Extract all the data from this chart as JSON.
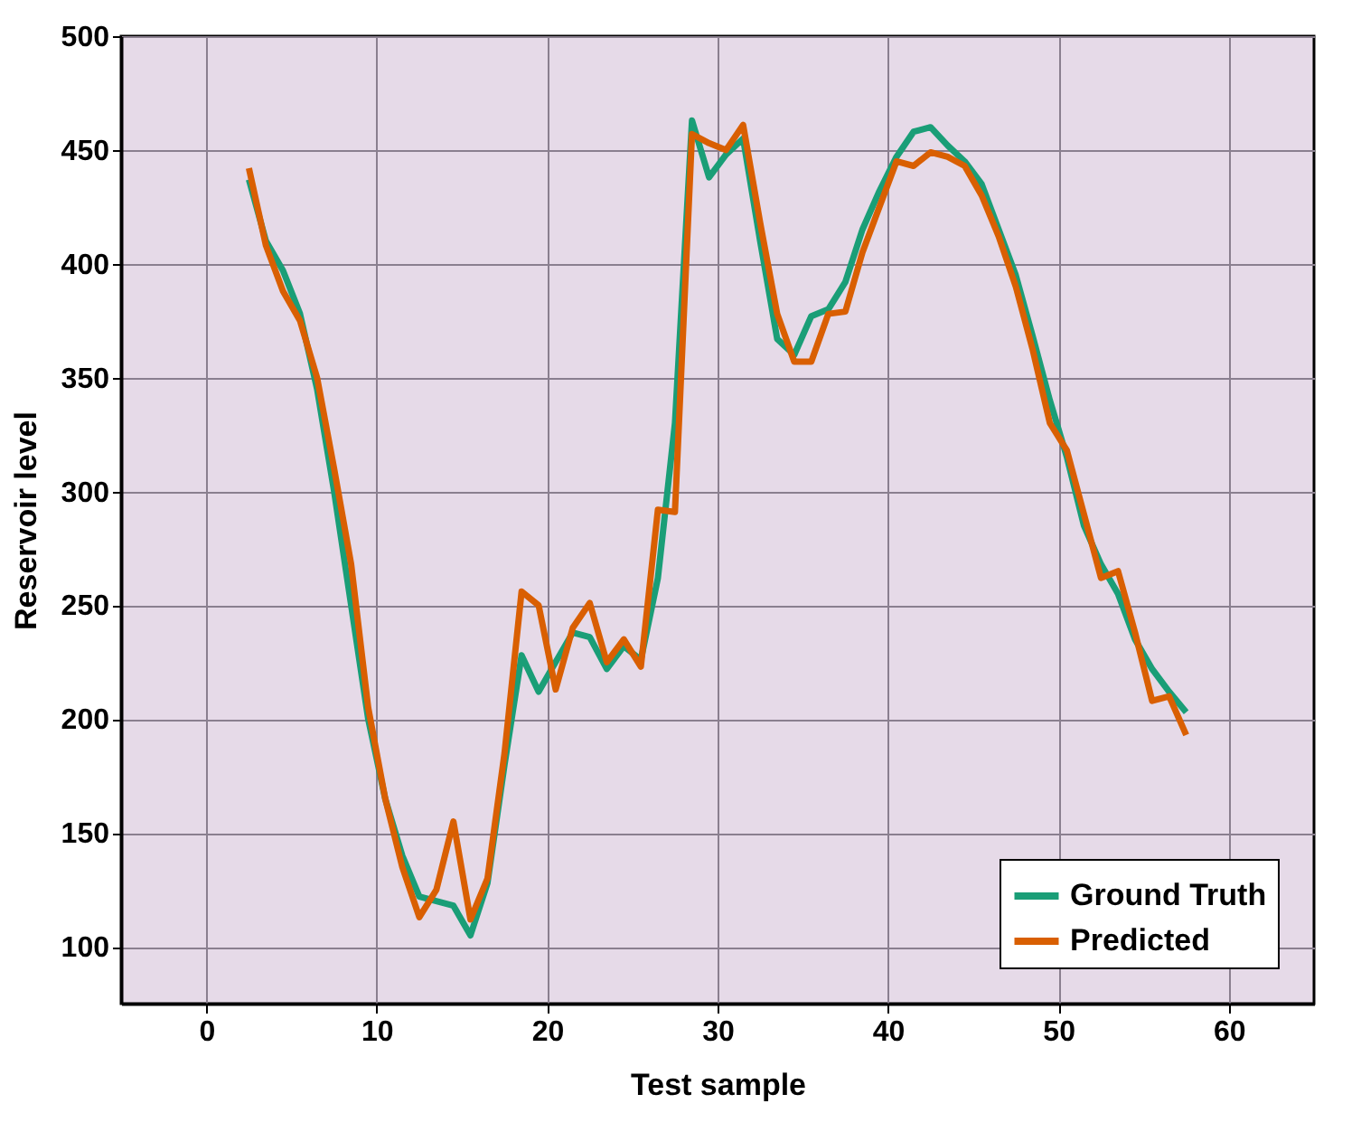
{
  "chart_data": {
    "type": "line",
    "xlabel": "Test sample",
    "ylabel": "Reservoir level",
    "x": [
      2.5,
      3.5,
      4.5,
      5.5,
      6.5,
      7.5,
      8.5,
      9.5,
      10.5,
      11.5,
      12.5,
      13.5,
      14.5,
      15.5,
      16.5,
      17.5,
      18.5,
      19.5,
      20.5,
      21.5,
      22.5,
      23.5,
      24.5,
      25.5,
      26.5,
      27.5,
      28.5,
      29.5,
      30.5,
      31.5,
      32.5,
      33.5,
      34.5,
      35.5,
      36.5,
      37.5,
      38.5,
      39.5,
      40.5,
      41.5,
      42.5,
      43.5,
      44.5,
      45.5,
      46.5,
      47.5,
      48.5,
      49.5,
      50.5,
      51.5,
      52.5,
      53.5,
      54.5,
      55.5,
      56.5,
      57.5
    ],
    "series": [
      {
        "name": "Ground Truth",
        "color": "#1a9e77",
        "values": [
          437,
          410,
          397,
          378,
          345,
          300,
          250,
          200,
          165,
          140,
          122,
          120,
          118,
          105,
          128,
          180,
          228,
          212,
          225,
          238,
          236,
          222,
          232,
          226,
          262,
          330,
          463,
          438,
          448,
          455,
          410,
          367,
          360,
          377,
          380,
          392,
          415,
          432,
          447,
          458,
          460,
          452,
          445,
          435,
          415,
          395,
          368,
          340,
          315,
          285,
          268,
          255,
          235,
          222,
          212,
          203
        ]
      },
      {
        "name": "Predicted",
        "color": "#d95f02",
        "values": [
          442,
          408,
          388,
          375,
          350,
          310,
          268,
          205,
          165,
          135,
          113,
          125,
          155,
          112,
          130,
          185,
          256,
          250,
          213,
          240,
          251,
          225,
          235,
          223,
          292,
          291,
          457,
          453,
          450,
          461,
          418,
          378,
          357,
          357,
          378,
          379,
          405,
          425,
          445,
          443,
          449,
          447,
          443,
          430,
          412,
          390,
          362,
          330,
          318,
          290,
          262,
          265,
          238,
          208,
          210,
          193
        ]
      }
    ],
    "xlim": [
      -5,
      65
    ],
    "xticks": [
      0,
      10,
      20,
      30,
      40,
      50,
      60
    ],
    "ylim": [
      75,
      500
    ],
    "yticks": [
      100,
      150,
      200,
      250,
      300,
      350,
      400,
      450,
      500
    ],
    "grid": true,
    "legend": "bottom right",
    "line_style": "solid",
    "marker": "none"
  }
}
